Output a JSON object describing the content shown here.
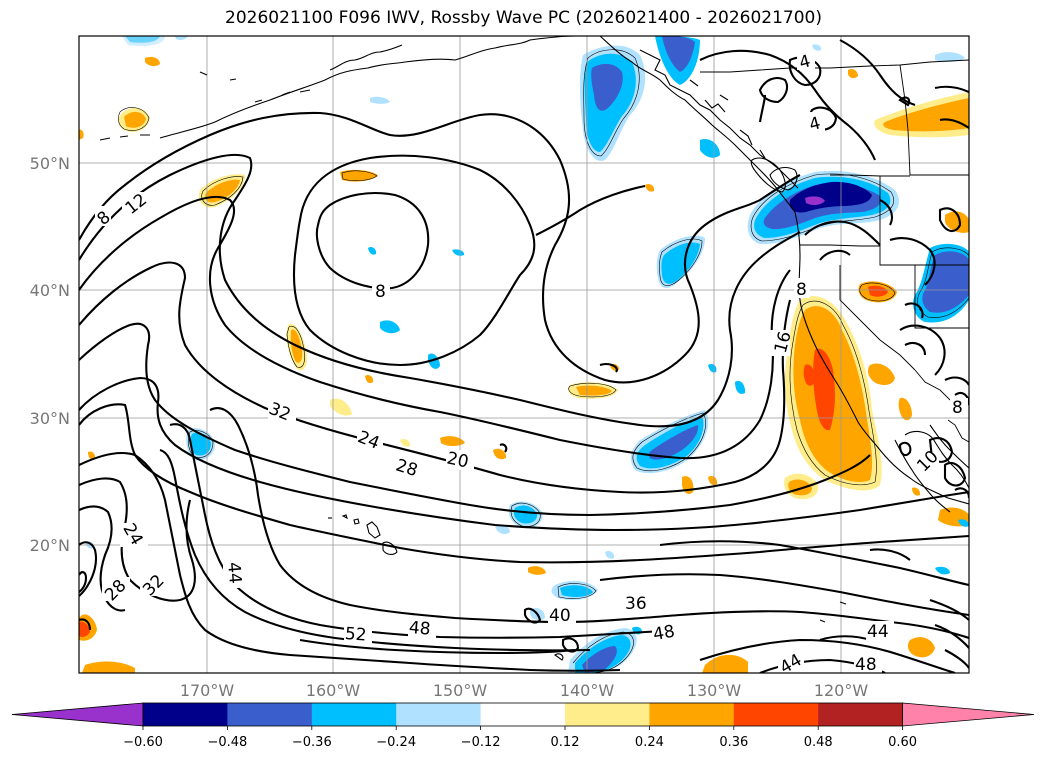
{
  "title": "2026021100 F096 IWV, Rossby Wave PC (2026021400 - 2026021700)",
  "map": {
    "lat_ticks": [
      "50°N",
      "40°N",
      "30°N",
      "20°N"
    ],
    "lon_ticks": [
      "170°W",
      "160°W",
      "150°W",
      "140°W",
      "130°W",
      "120°W"
    ],
    "grid": true,
    "coastlines": true
  },
  "iwv_contour_labels": [
    "4",
    "4",
    "8",
    "12",
    "8",
    "8",
    "16",
    "8",
    "10",
    "32",
    "24",
    "28",
    "20",
    "24",
    "28",
    "32",
    "44",
    "40",
    "36",
    "52",
    "48",
    "48",
    "44",
    "44",
    "48"
  ],
  "colorbar": {
    "ticks": [
      "−0.60",
      "−0.48",
      "−0.36",
      "−0.24",
      "−0.12",
      "0.12",
      "0.24",
      "0.36",
      "0.48",
      "0.60"
    ],
    "colors": [
      "#9932cc",
      "#00008b",
      "#3a5fcd",
      "#00bfff",
      "#b0e2ff",
      "#ffffff",
      "#ffec8b",
      "#ffa500",
      "#ff4500",
      "#b22222",
      "#ff82ab"
    ],
    "extend": "both"
  }
}
